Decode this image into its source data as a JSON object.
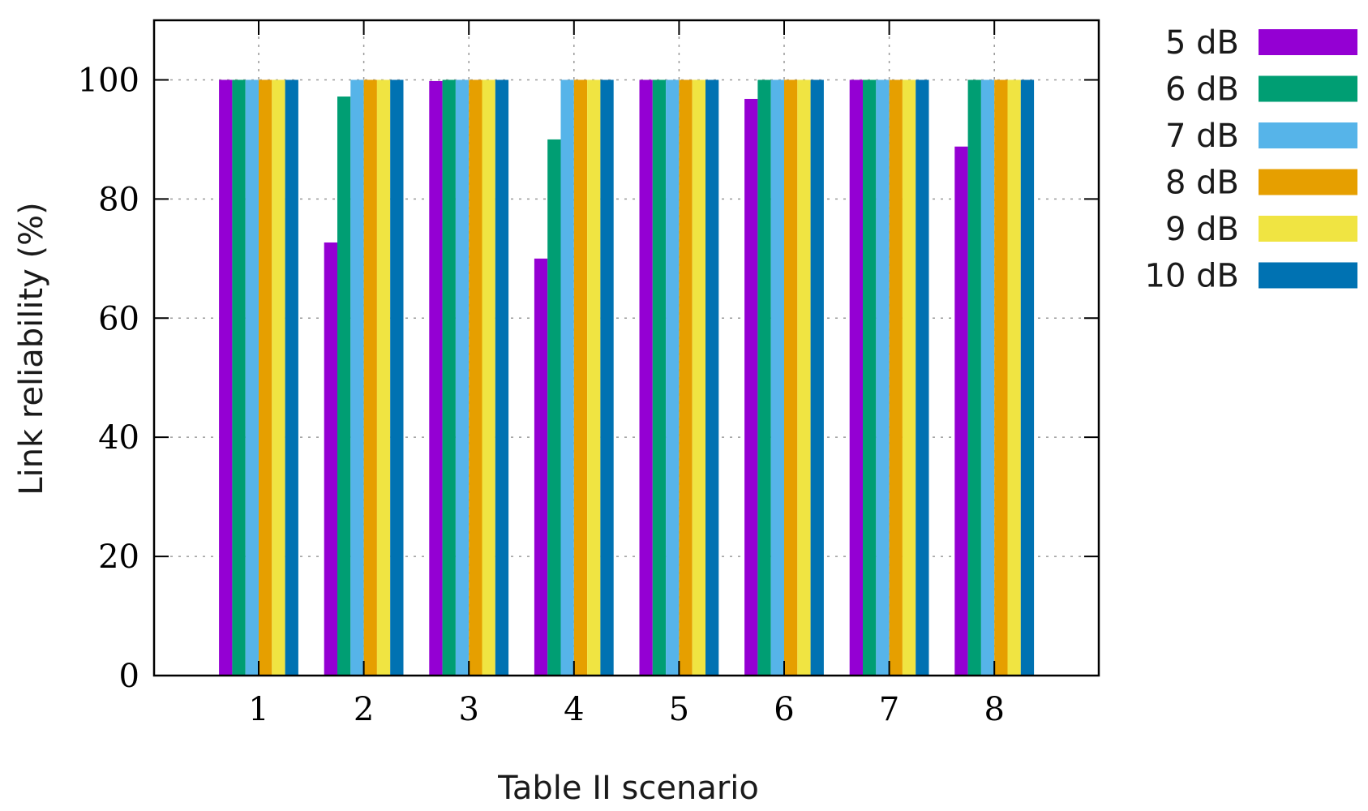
{
  "chart_data": {
    "type": "bar",
    "xlabel": "Table II scenario",
    "ylabel": "Link reliability (%)",
    "categories": [
      "1",
      "2",
      "3",
      "4",
      "5",
      "6",
      "7",
      "8"
    ],
    "ylim": [
      0,
      110
    ],
    "yticks": [
      "0",
      "20",
      "40",
      "60",
      "80",
      "100"
    ],
    "grid": true,
    "legend_position": "right-top",
    "series": [
      {
        "name": "5 dB",
        "color": "#9400d3",
        "values": [
          100,
          72.7,
          99.8,
          70,
          100,
          96.8,
          100,
          88.8
        ]
      },
      {
        "name": "6 dB",
        "color": "#009e73",
        "values": [
          100,
          97.2,
          100,
          90,
          100,
          100,
          100,
          100
        ]
      },
      {
        "name": "7 dB",
        "color": "#56b4e9",
        "values": [
          100,
          100,
          100,
          100,
          100,
          100,
          100,
          100
        ]
      },
      {
        "name": "8 dB",
        "color": "#e69f00",
        "values": [
          100,
          100,
          100,
          100,
          100,
          100,
          100,
          100
        ]
      },
      {
        "name": "9 dB",
        "color": "#f0e442",
        "values": [
          100,
          100,
          100,
          100,
          100,
          100,
          100,
          100
        ]
      },
      {
        "name": "10 dB",
        "color": "#0072b2",
        "values": [
          100,
          100,
          100,
          100,
          100,
          100,
          100,
          100
        ]
      }
    ]
  }
}
